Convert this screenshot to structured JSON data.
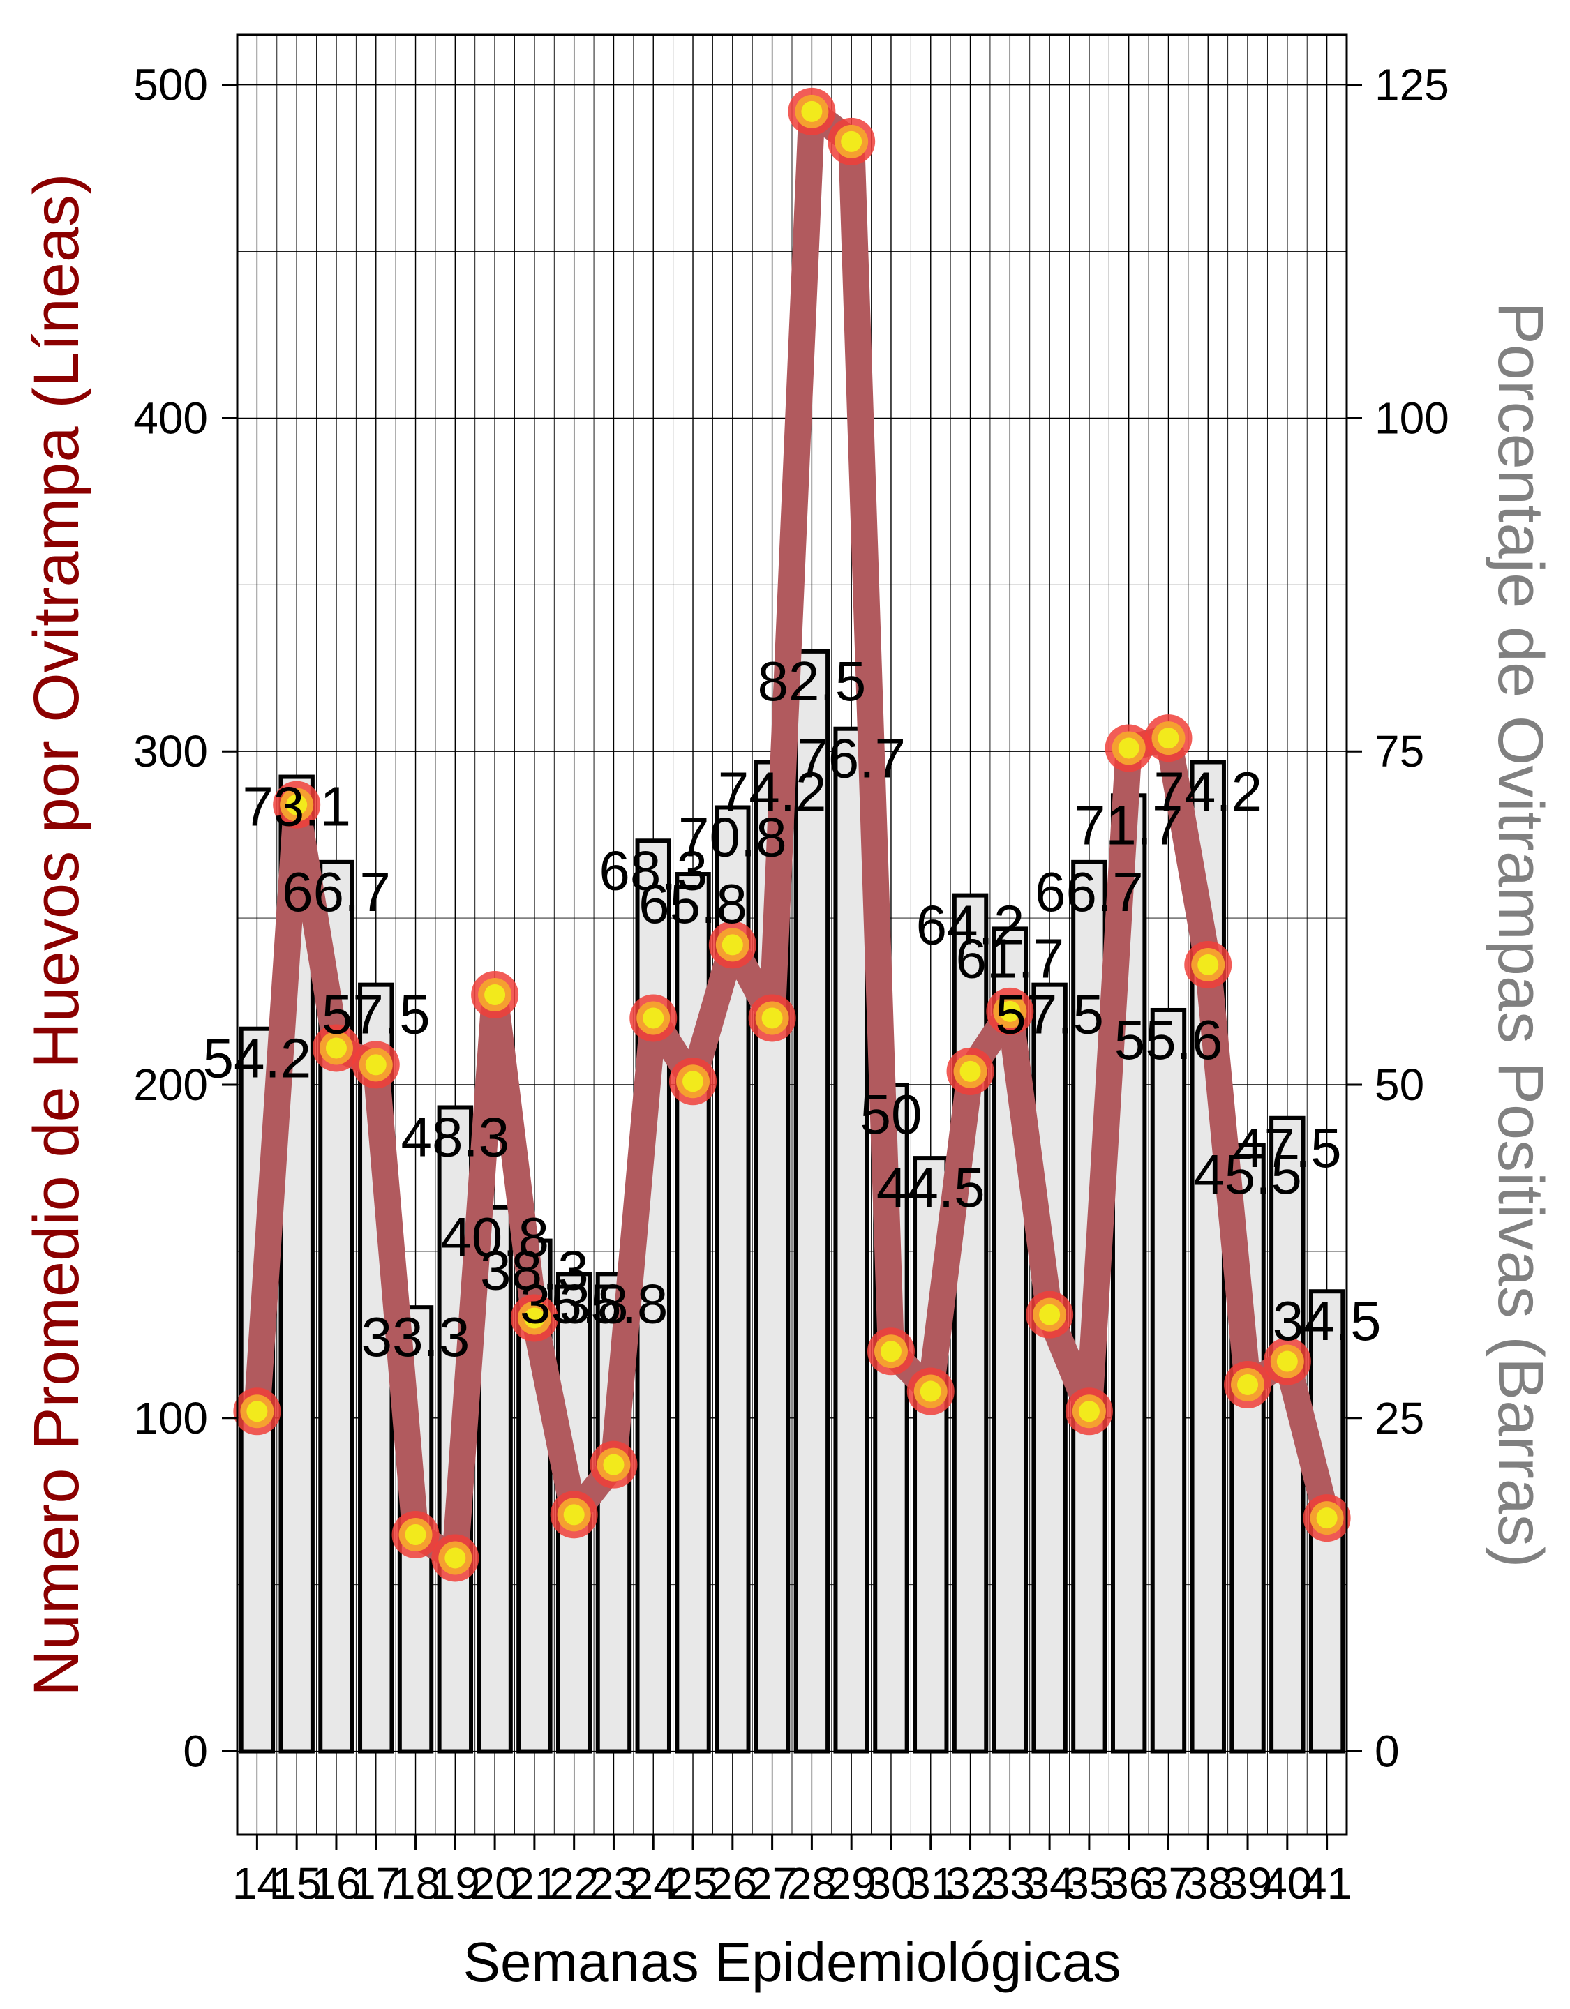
{
  "chart_data": {
    "type": "bar",
    "xlabel": "Semanas Epidemiológicas",
    "ylabel_left": "Numero Promedio de Huevos por Ovitrampa (Líneas)",
    "ylabel_right": "Porcentaje de Ovitrampas Positivas (Barras)",
    "categories": [
      "14",
      "15",
      "16",
      "17",
      "18",
      "19",
      "20",
      "21",
      "22",
      "23",
      "24",
      "25",
      "26",
      "27",
      "28",
      "29",
      "30",
      "31",
      "32",
      "33",
      "34",
      "35",
      "36",
      "37",
      "38",
      "39",
      "40",
      "41"
    ],
    "ylim_left": [
      -25,
      515
    ],
    "ylim_right": [
      -6.25,
      128.75
    ],
    "yticks_left": [
      "0",
      "100",
      "200",
      "300",
      "400",
      "500"
    ],
    "yticks_right": [
      "0",
      "25",
      "50",
      "75",
      "100",
      "125"
    ],
    "grid": true,
    "series": [
      {
        "name": "Porcentaje de Ovitrampas Positivas (Barras)",
        "kind": "bar",
        "axis": "right",
        "values": [
          54.2,
          73.1,
          66.7,
          57.5,
          33.3,
          48.3,
          40.8,
          38.3,
          35.8,
          35.8,
          68.3,
          65.8,
          70.8,
          74.2,
          82.5,
          76.7,
          50.0,
          44.5,
          64.2,
          61.7,
          57.5,
          66.7,
          71.7,
          55.6,
          74.2,
          45.5,
          47.5,
          34.5
        ],
        "labels": [
          "54.2",
          "73.1",
          "66.7",
          "57.5",
          "33.3",
          "48.3",
          "40.8",
          "38.3",
          "35.8",
          "35.8",
          "68.3",
          "65.8",
          "70.8",
          "74.2",
          "82.5",
          "76.7",
          "50",
          "44.5",
          "64.2",
          "61.7",
          "57.5",
          "66.7",
          "71.7",
          "55.6",
          "74.2",
          "45.5",
          "47.5",
          "34.5"
        ]
      },
      {
        "name": "Numero Promedio de Huevos por Ovitrampa (Líneas)",
        "kind": "line",
        "axis": "left",
        "values": [
          102,
          284,
          211,
          206,
          65,
          58,
          227,
          130,
          71,
          86,
          220,
          201,
          242,
          220,
          492,
          483,
          120,
          108,
          204,
          222,
          131,
          102,
          301,
          304,
          236,
          110,
          117,
          70
        ]
      }
    ],
    "colors": {
      "left_axis_title": "#8b0000",
      "right_axis_title": "#808080",
      "bar_fill": "#e8e8e8",
      "bar_stroke": "#000000",
      "line": "#b15a5e",
      "marker_outer": "#f0403a",
      "marker_middle": "#f5a030",
      "marker_inner": "#f2ea1c"
    }
  }
}
